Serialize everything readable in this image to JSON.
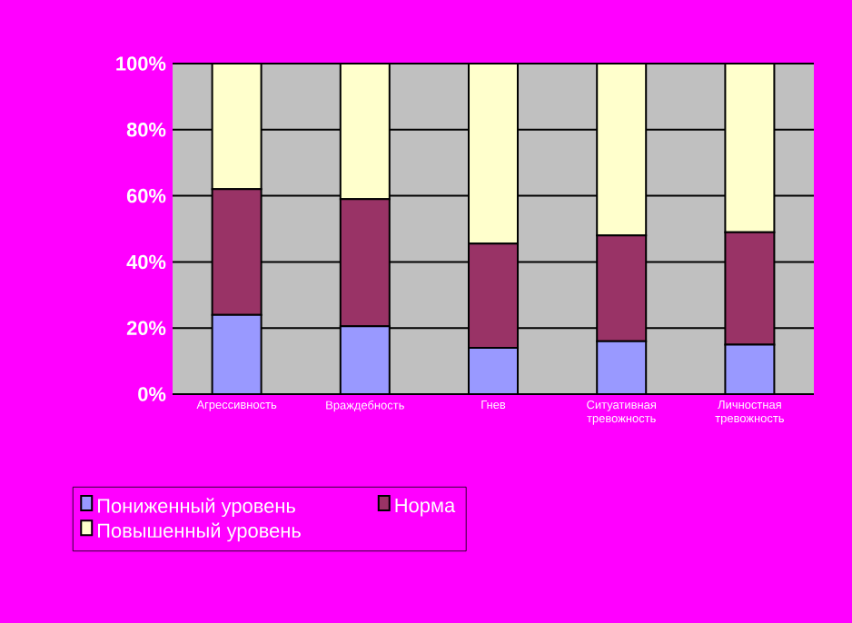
{
  "chart_data": {
    "type": "bar",
    "stacked": true,
    "categories": [
      "Агрессивность",
      "Враждебность",
      "Гнев",
      "Ситуативная тревожность",
      "Личностная тревожность"
    ],
    "series": [
      {
        "name": "Пониженный уровень",
        "color": "#9999ff",
        "values": [
          24,
          20.5,
          14,
          16,
          15
        ]
      },
      {
        "name": "Норма",
        "color": "#993366",
        "values": [
          38,
          38.5,
          31.5,
          32,
          34
        ]
      },
      {
        "name": "Повышенный уровень",
        "color": "#ffffcc",
        "values": [
          38,
          41,
          54.5,
          52,
          51
        ]
      }
    ],
    "ylim": [
      0,
      100
    ],
    "yticks": [
      {
        "value": 0,
        "label": "0%"
      },
      {
        "value": 20,
        "label": "20%"
      },
      {
        "value": 40,
        "label": "40%"
      },
      {
        "value": 60,
        "label": "60%"
      },
      {
        "value": 80,
        "label": "80%"
      },
      {
        "value": 100,
        "label": "100%"
      }
    ],
    "grid": "y",
    "legend": "bottom"
  }
}
